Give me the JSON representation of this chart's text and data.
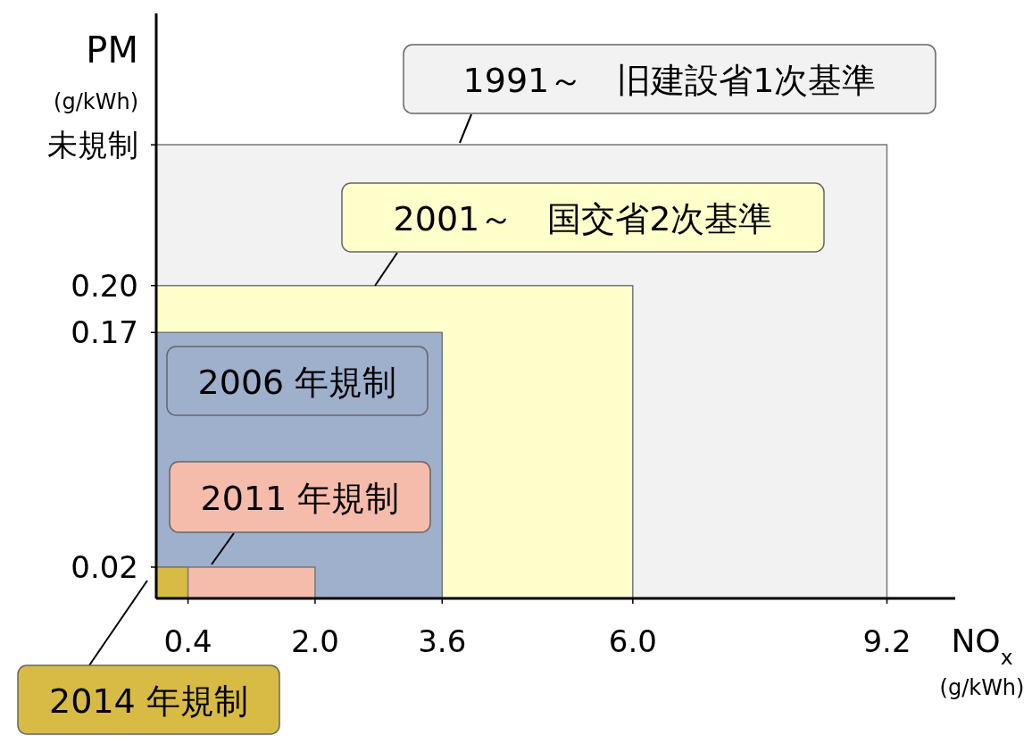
{
  "chart_data": {
    "type": "area",
    "xlabel": "NO$_{x}$\n(g/kWh)",
    "ylabel": "PM\n(g/kWh)",
    "xlim": [
      0,
      10.06
    ],
    "ylim": [
      0,
      0.374
    ],
    "xticks": [
      {
        "value": 0.4,
        "label": "0.4"
      },
      {
        "value": 2,
        "label": "2.0"
      },
      {
        "value": 3.6,
        "label": "3.6"
      },
      {
        "value": 6,
        "label": "6.0"
      },
      {
        "value": 9.2,
        "label": "9.2"
      }
    ],
    "yticks": [
      0.02,
      0.17,
      {
        "value": 0.2,
        "label": "0.20"
      },
      {
        "value": 0.29,
        "label": "未規制"
      }
    ],
    "series": [
      {
        "name": "1991～　旧建設省1次基準",
        "color": "#f2f2f2",
        "x": [
          0,
          9.2
        ],
        "values": [
          0.29,
          0.29
        ]
      },
      {
        "name": "2001～　国交省2次基準",
        "color": "#ffffcc",
        "x": [
          0,
          6
        ],
        "values": [
          0.2,
          0.2
        ]
      },
      {
        "name": "2006 年規制",
        "color": "#9eb0cc",
        "x": [
          0,
          3.6
        ],
        "values": [
          0.17,
          0.17
        ]
      },
      {
        "name": "2011 年規制",
        "color": "#f6bcab",
        "x": [
          0,
          2
        ],
        "values": [
          0.02,
          0.02
        ]
      },
      {
        "name": "2014 年規制",
        "color": "#d8bb45",
        "x": [
          0,
          0.4
        ],
        "values": [
          0.02,
          0.02
        ]
      }
    ]
  }
}
